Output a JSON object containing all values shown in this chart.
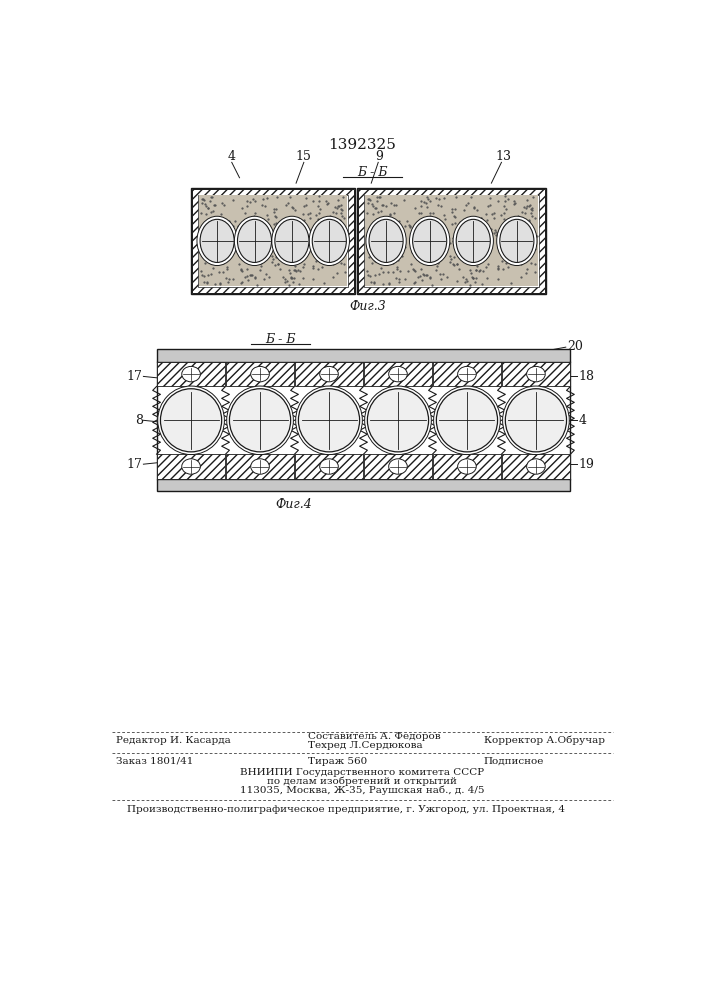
{
  "patent_number": "1392325",
  "line_color": "#1a1a1a",
  "fig3_label": "Фиг.3",
  "fig4_label": "Фиг.4",
  "footer_line1_left": "Редактор И. Касарда",
  "footer_line1_center1": "Составитель А. Федоров",
  "footer_line1_center2": "Техред Л.Сердюкова",
  "footer_line1_right": "Корректор А.Обручар",
  "footer_line2_left": "Заказ 1801/41",
  "footer_line2_center": "Тираж 560",
  "footer_line2_right": "Подписное",
  "footer_line3": "ВНИИПИ Государственного комитета СССР",
  "footer_line4": "по делам изобретений и открытий",
  "footer_line5": "113035, Москва, Ж-35, Раушская наб., д. 4/5",
  "footer_last": "Производственно-полиграфическое предприятие, г. Ужгород, ул. Проектная, 4"
}
